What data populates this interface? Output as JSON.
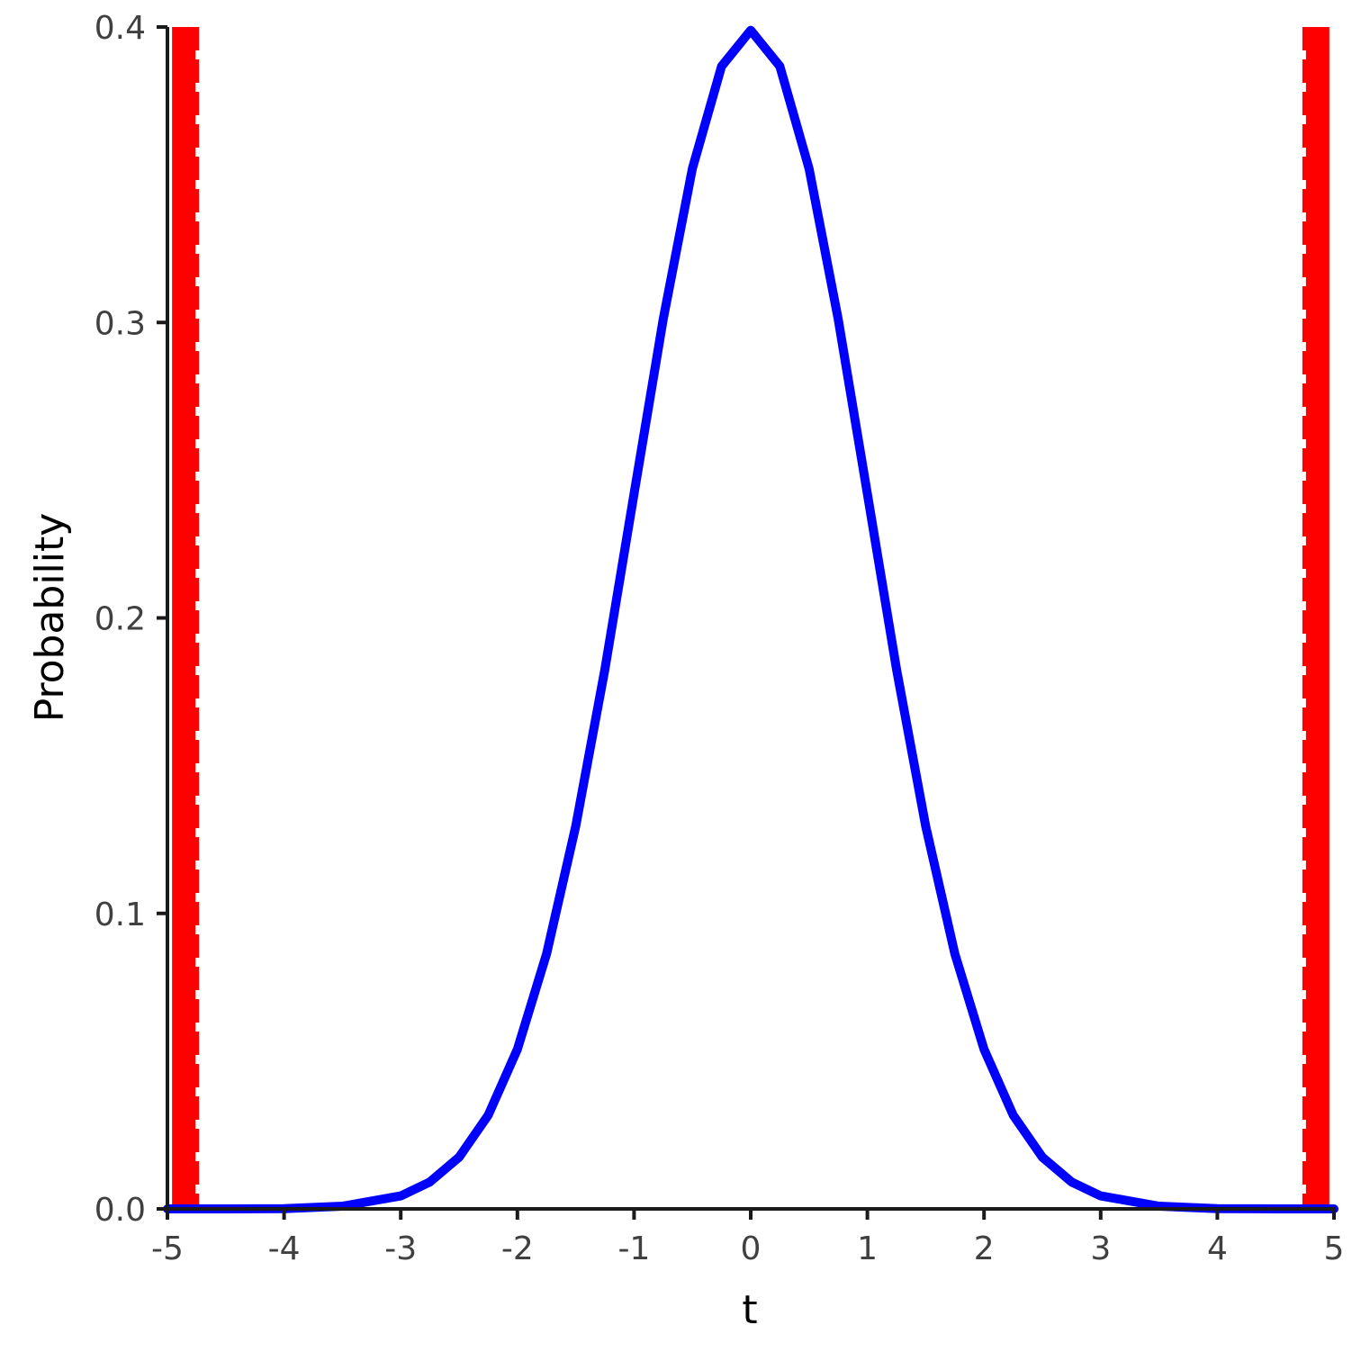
{
  "chart_data": {
    "type": "line",
    "title": "",
    "xlabel": "t",
    "ylabel": "Probability",
    "xlim": [
      -5,
      5
    ],
    "ylim": [
      0,
      0.4
    ],
    "xticks": [
      -5,
      -4,
      -3,
      -2,
      -1,
      0,
      1,
      2,
      3,
      4,
      5
    ],
    "xtick_labels": [
      "-5",
      "-4",
      "-3",
      "-2",
      "-1",
      "0",
      "1",
      "2",
      "3",
      "4",
      "5"
    ],
    "yticks": [
      0,
      0.1,
      0.2,
      0.3,
      0.4
    ],
    "ytick_labels": [
      "0.0",
      "0.1",
      "0.2",
      "0.3",
      "0.4"
    ],
    "grid": false,
    "legend": "none",
    "series": [
      {
        "color": "#0000ff",
        "x": [
          -5,
          -4.5,
          -4,
          -3.5,
          -3,
          -2.75,
          -2.5,
          -2.25,
          -2,
          -1.75,
          -1.5,
          -1.25,
          -1,
          -0.75,
          -0.5,
          -0.25,
          0,
          0.25,
          0.5,
          0.75,
          1,
          1.25,
          1.5,
          1.75,
          2,
          2.25,
          2.5,
          2.75,
          3,
          3.5,
          4,
          4.5,
          5
        ],
        "y": [
          0.0,
          0.0,
          0.0001,
          0.0009,
          0.0044,
          0.0091,
          0.0175,
          0.0317,
          0.054,
          0.0863,
          0.1295,
          0.1826,
          0.242,
          0.3011,
          0.3521,
          0.3867,
          0.3989,
          0.3867,
          0.3521,
          0.3011,
          0.242,
          0.1826,
          0.1295,
          0.0863,
          0.054,
          0.0317,
          0.0175,
          0.0091,
          0.0044,
          0.0009,
          0.0001,
          0.0,
          0.0
        ]
      }
    ],
    "vlines": [
      {
        "x": -4.86,
        "color": "#ff0000",
        "style": "dashed"
      },
      {
        "x": 4.86,
        "color": "#ff0000",
        "style": "dashed"
      }
    ]
  }
}
